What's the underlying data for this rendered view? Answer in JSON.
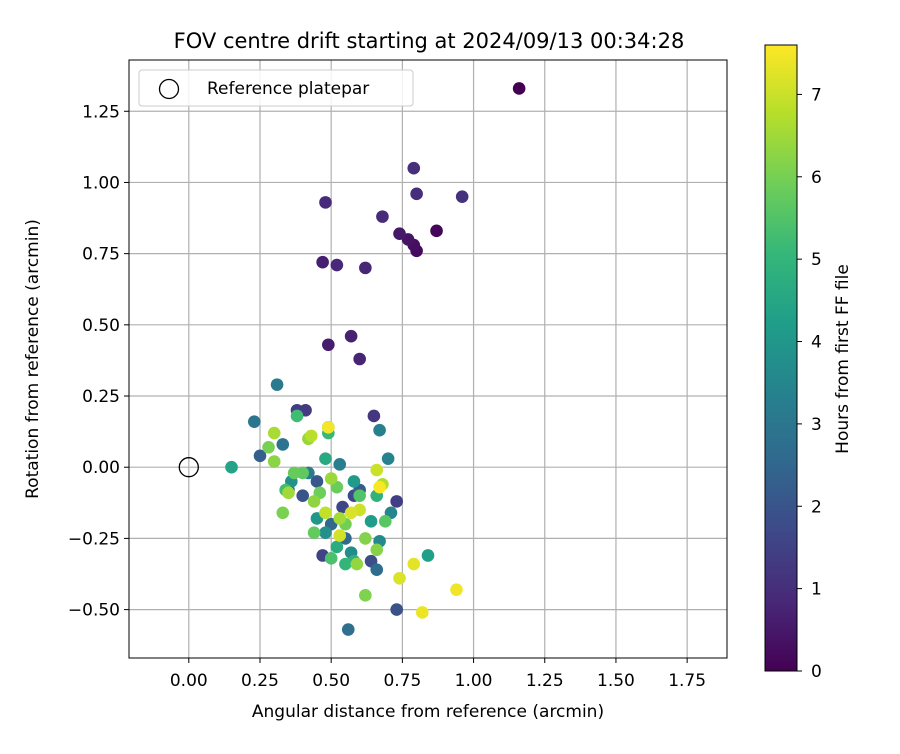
{
  "chart_data": {
    "type": "scatter",
    "title": "FOV centre drift starting at 2024/09/13 00:34:28",
    "xlabel": "Angular distance from reference (arcmin)",
    "ylabel": "Rotation from reference (arcmin)",
    "xlim": [
      -0.21,
      1.89
    ],
    "ylim": [
      -0.67,
      1.43
    ],
    "xticks": [
      0.0,
      0.25,
      0.5,
      0.75,
      1.0,
      1.25,
      1.5,
      1.75
    ],
    "xtick_labels": [
      "0.00",
      "0.25",
      "0.50",
      "0.75",
      "1.00",
      "1.25",
      "1.50",
      "1.75"
    ],
    "yticks": [
      -0.5,
      -0.25,
      0.0,
      0.25,
      0.5,
      0.75,
      1.0,
      1.25
    ],
    "ytick_labels": [
      "−0.50",
      "−0.25",
      "0.00",
      "0.25",
      "0.50",
      "0.75",
      "1.00",
      "1.25"
    ],
    "grid": true,
    "legend": {
      "placement": "top-left",
      "entries": [
        "Reference platepar"
      ]
    },
    "reference_point": {
      "x": 0.0,
      "y": 0.0,
      "label": "Reference platepar"
    },
    "colorbar": {
      "label": "Hours from first FF file",
      "range": [
        0,
        7.6
      ],
      "ticks": [
        0,
        1,
        2,
        3,
        4,
        5,
        6,
        7
      ],
      "tick_labels": [
        "0",
        "1",
        "2",
        "3",
        "4",
        "5",
        "6",
        "7"
      ],
      "colormap": "viridis",
      "colors": [
        "#440154",
        "#482878",
        "#3e4989",
        "#31688e",
        "#26828e",
        "#1f9e89",
        "#35b779",
        "#6ece58",
        "#b5de2b",
        "#fde725"
      ]
    },
    "points": [
      {
        "x": 1.16,
        "y": 1.33,
        "c": 0.0
      },
      {
        "x": 0.87,
        "y": 0.83,
        "c": 0.1
      },
      {
        "x": 0.8,
        "y": 0.76,
        "c": 0.2
      },
      {
        "x": 0.79,
        "y": 0.78,
        "c": 0.3
      },
      {
        "x": 0.77,
        "y": 0.8,
        "c": 0.4
      },
      {
        "x": 0.74,
        "y": 0.82,
        "c": 0.5
      },
      {
        "x": 0.49,
        "y": 0.43,
        "c": 0.6
      },
      {
        "x": 0.47,
        "y": 0.72,
        "c": 0.65
      },
      {
        "x": 0.57,
        "y": 0.46,
        "c": 0.7
      },
      {
        "x": 0.6,
        "y": 0.38,
        "c": 0.75
      },
      {
        "x": 0.62,
        "y": 0.7,
        "c": 0.8
      },
      {
        "x": 0.52,
        "y": 0.71,
        "c": 0.85
      },
      {
        "x": 0.48,
        "y": 0.93,
        "c": 0.9
      },
      {
        "x": 0.68,
        "y": 0.88,
        "c": 0.95
      },
      {
        "x": 0.8,
        "y": 0.96,
        "c": 1.0
      },
      {
        "x": 0.79,
        "y": 1.05,
        "c": 1.05
      },
      {
        "x": 0.96,
        "y": 0.95,
        "c": 1.1
      },
      {
        "x": 0.65,
        "y": 0.18,
        "c": 1.2
      },
      {
        "x": 0.41,
        "y": 0.2,
        "c": 1.3
      },
      {
        "x": 0.38,
        "y": 0.2,
        "c": 1.35
      },
      {
        "x": 0.73,
        "y": -0.12,
        "c": 1.4
      },
      {
        "x": 0.47,
        "y": -0.31,
        "c": 1.5
      },
      {
        "x": 0.54,
        "y": -0.14,
        "c": 1.6
      },
      {
        "x": 0.58,
        "y": -0.1,
        "c": 1.7
      },
      {
        "x": 0.64,
        "y": -0.33,
        "c": 1.8
      },
      {
        "x": 0.73,
        "y": -0.5,
        "c": 1.9
      },
      {
        "x": 0.4,
        "y": -0.1,
        "c": 2.0
      },
      {
        "x": 0.45,
        "y": -0.05,
        "c": 2.1
      },
      {
        "x": 0.6,
        "y": -0.08,
        "c": 2.2
      },
      {
        "x": 0.25,
        "y": 0.04,
        "c": 2.3
      },
      {
        "x": 0.35,
        "y": -0.08,
        "c": 2.4
      },
      {
        "x": 0.5,
        "y": -0.2,
        "c": 2.5
      },
      {
        "x": 0.55,
        "y": -0.25,
        "c": 2.6
      },
      {
        "x": 0.66,
        "y": -0.36,
        "c": 2.7
      },
      {
        "x": 0.56,
        "y": -0.57,
        "c": 2.8
      },
      {
        "x": 0.33,
        "y": 0.08,
        "c": 2.9
      },
      {
        "x": 0.23,
        "y": 0.16,
        "c": 3.0
      },
      {
        "x": 0.31,
        "y": 0.29,
        "c": 3.1
      },
      {
        "x": 0.42,
        "y": -0.02,
        "c": 3.15
      },
      {
        "x": 0.53,
        "y": 0.01,
        "c": 3.2
      },
      {
        "x": 0.67,
        "y": 0.13,
        "c": 3.3
      },
      {
        "x": 0.7,
        "y": 0.03,
        "c": 3.4
      },
      {
        "x": 0.71,
        "y": -0.16,
        "c": 3.5
      },
      {
        "x": 0.67,
        "y": -0.26,
        "c": 3.6
      },
      {
        "x": 0.57,
        "y": -0.3,
        "c": 3.7
      },
      {
        "x": 0.48,
        "y": -0.23,
        "c": 3.8
      },
      {
        "x": 0.36,
        "y": -0.05,
        "c": 3.9
      },
      {
        "x": 0.45,
        "y": -0.18,
        "c": 4.0
      },
      {
        "x": 0.58,
        "y": -0.05,
        "c": 4.1
      },
      {
        "x": 0.64,
        "y": -0.19,
        "c": 4.2
      },
      {
        "x": 0.84,
        "y": -0.31,
        "c": 4.3
      },
      {
        "x": 0.15,
        "y": 0.0,
        "c": 4.4
      },
      {
        "x": 0.49,
        "y": 0.14,
        "c": 4.5
      },
      {
        "x": 0.48,
        "y": 0.03,
        "c": 4.6
      },
      {
        "x": 0.52,
        "y": -0.28,
        "c": 4.7
      },
      {
        "x": 0.58,
        "y": -0.33,
        "c": 4.8
      },
      {
        "x": 0.66,
        "y": -0.1,
        "c": 4.9
      },
      {
        "x": 0.55,
        "y": -0.34,
        "c": 5.0
      },
      {
        "x": 0.49,
        "y": 0.12,
        "c": 5.1
      },
      {
        "x": 0.38,
        "y": 0.18,
        "c": 5.2
      },
      {
        "x": 0.34,
        "y": -0.08,
        "c": 5.3
      },
      {
        "x": 0.5,
        "y": -0.32,
        "c": 5.4
      },
      {
        "x": 0.6,
        "y": -0.1,
        "c": 5.5
      },
      {
        "x": 0.69,
        "y": -0.19,
        "c": 5.6
      },
      {
        "x": 0.4,
        "y": -0.02,
        "c": 5.7
      },
      {
        "x": 0.44,
        "y": -0.23,
        "c": 5.75
      },
      {
        "x": 0.37,
        "y": -0.02,
        "c": 5.8
      },
      {
        "x": 0.52,
        "y": -0.07,
        "c": 5.85
      },
      {
        "x": 0.46,
        "y": -0.09,
        "c": 5.9
      },
      {
        "x": 0.55,
        "y": -0.2,
        "c": 5.95
      },
      {
        "x": 0.28,
        "y": 0.07,
        "c": 6.0
      },
      {
        "x": 0.33,
        "y": -0.16,
        "c": 6.05
      },
      {
        "x": 0.62,
        "y": -0.45,
        "c": 6.1
      },
      {
        "x": 0.62,
        "y": -0.25,
        "c": 6.15
      },
      {
        "x": 0.66,
        "y": -0.29,
        "c": 6.2
      },
      {
        "x": 0.3,
        "y": 0.02,
        "c": 6.25
      },
      {
        "x": 0.44,
        "y": -0.12,
        "c": 6.3
      },
      {
        "x": 0.59,
        "y": -0.34,
        "c": 6.35
      },
      {
        "x": 0.42,
        "y": 0.1,
        "c": 6.4
      },
      {
        "x": 0.5,
        "y": -0.04,
        "c": 6.45
      },
      {
        "x": 0.35,
        "y": -0.09,
        "c": 6.5
      },
      {
        "x": 0.53,
        "y": -0.18,
        "c": 6.55
      },
      {
        "x": 0.3,
        "y": 0.12,
        "c": 6.6
      },
      {
        "x": 0.68,
        "y": -0.06,
        "c": 6.7
      },
      {
        "x": 0.43,
        "y": 0.11,
        "c": 6.8
      },
      {
        "x": 0.48,
        "y": -0.16,
        "c": 6.9
      },
      {
        "x": 0.66,
        "y": -0.01,
        "c": 7.0
      },
      {
        "x": 0.6,
        "y": -0.15,
        "c": 7.05
      },
      {
        "x": 0.53,
        "y": -0.24,
        "c": 7.1
      },
      {
        "x": 0.57,
        "y": -0.16,
        "c": 7.15
      },
      {
        "x": 0.74,
        "y": -0.39,
        "c": 7.2
      },
      {
        "x": 0.79,
        "y": -0.34,
        "c": 7.3
      },
      {
        "x": 0.82,
        "y": -0.51,
        "c": 7.4
      },
      {
        "x": 0.94,
        "y": -0.43,
        "c": 7.45
      },
      {
        "x": 0.49,
        "y": 0.14,
        "c": 7.5
      },
      {
        "x": 0.67,
        "y": -0.07,
        "c": 7.55
      }
    ]
  }
}
